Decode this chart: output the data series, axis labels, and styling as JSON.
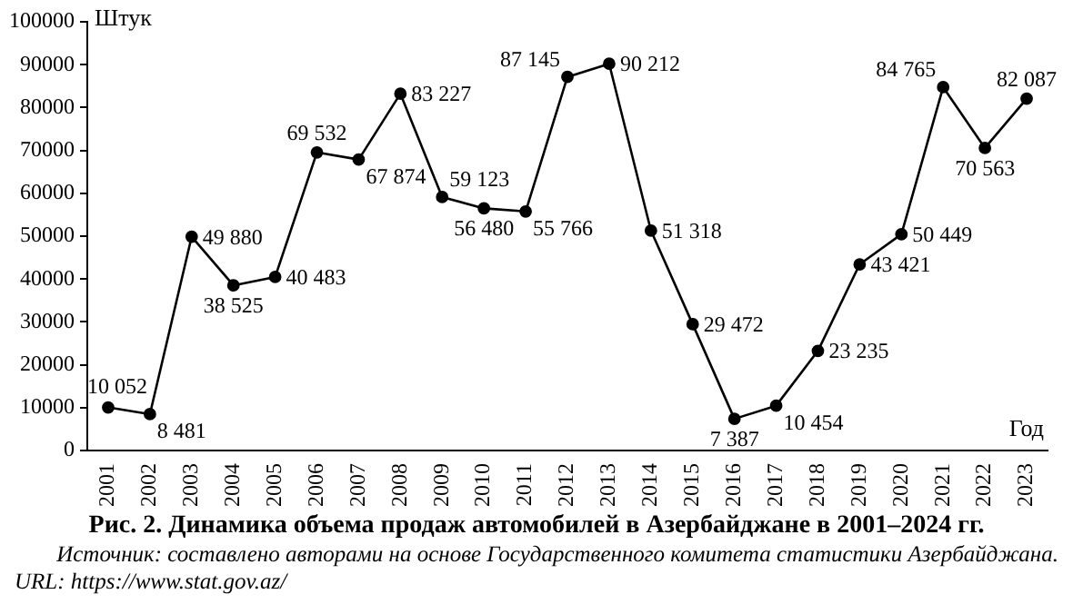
{
  "chart_data": {
    "type": "line",
    "title": "Рис. 2. Динамика объема продаж автомобилей в Азербайджане в 2001–2024 гг.",
    "ylabel": "Штук",
    "xlabel": "Год",
    "categories": [
      "2001",
      "2002",
      "2003",
      "2004",
      "2005",
      "2006",
      "2007",
      "2008",
      "2009",
      "2010",
      "2011",
      "2012",
      "2013",
      "2014",
      "2015",
      "2016",
      "2017",
      "2018",
      "2019",
      "2020",
      "2021",
      "2022",
      "2023"
    ],
    "series": [
      {
        "color": "#000000",
        "values": [
          10052,
          8481,
          49880,
          38525,
          40483,
          69532,
          67874,
          83227,
          59123,
          56480,
          55766,
          87145,
          90212,
          51318,
          29472,
          7387,
          10454,
          23235,
          43421,
          50449,
          84765,
          70563,
          82087
        ],
        "value_labels": [
          "10 052",
          "8 481",
          "49 880",
          "38 525",
          "40 483",
          "69 532",
          "67 874",
          "83 227",
          "59 123",
          "56 480",
          "55 766",
          "87 145",
          "90 212",
          "51 318",
          "29 472",
          "7 387",
          "10 454",
          "23 235",
          "43 421",
          "50 449",
          "84 765",
          "70 563",
          "82 087"
        ]
      }
    ],
    "ylim": [
      0,
      100000
    ],
    "yticks": [
      0,
      10000,
      20000,
      30000,
      40000,
      50000,
      60000,
      70000,
      80000,
      90000,
      100000
    ],
    "grid": false,
    "legend": false,
    "marker": "circle",
    "line_style": "solid",
    "annotations": [
      "Источник: составлено авторами на основе Государственного комитета статистики Азербайджана.",
      "URL: https://www.stat.gov.az/"
    ]
  }
}
